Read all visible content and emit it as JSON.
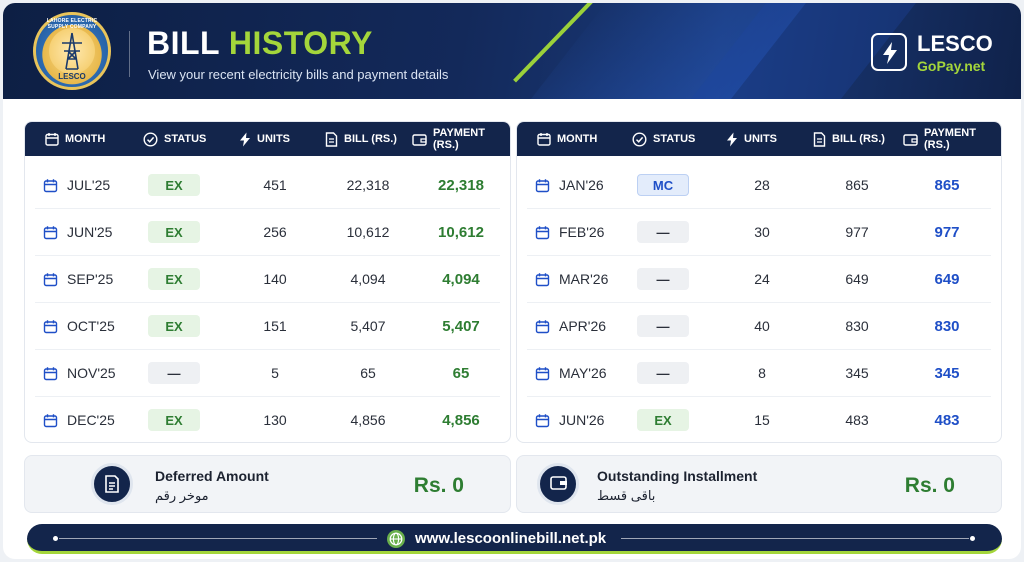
{
  "header": {
    "logo_top_text": "LAHORE ELECTRIC SUPPLY COMPANY",
    "logo_text": "LESCO",
    "title_part1": "BILL",
    "title_part2": "HISTORY",
    "subtitle": "View your recent electricity bills and payment details",
    "brand_name": "LESCO",
    "brand_sub": "GoPay.net"
  },
  "columns": {
    "month": "MONTH",
    "status": "STATUS",
    "units": "UNITS",
    "bill": "BILL (RS.)",
    "payment": "PAYMENT (RS.)"
  },
  "left_table": [
    {
      "month": "JUL'25",
      "status": "EX",
      "units": "451",
      "bill": "22,318",
      "payment": "22,318"
    },
    {
      "month": "JUN'25",
      "status": "EX",
      "units": "256",
      "bill": "10,612",
      "payment": "10,612"
    },
    {
      "month": "SEP'25",
      "status": "EX",
      "units": "140",
      "bill": "4,094",
      "payment": "4,094"
    },
    {
      "month": "OCT'25",
      "status": "EX",
      "units": "151",
      "bill": "5,407",
      "payment": "5,407"
    },
    {
      "month": "NOV'25",
      "status": "—",
      "units": "5",
      "bill": "65",
      "payment": "65"
    },
    {
      "month": "DEC'25",
      "status": "EX",
      "units": "130",
      "bill": "4,856",
      "payment": "4,856"
    }
  ],
  "right_table": [
    {
      "month": "JAN'26",
      "status": "MC",
      "units": "28",
      "bill": "865",
      "payment": "865"
    },
    {
      "month": "FEB'26",
      "status": "—",
      "units": "30",
      "bill": "977",
      "payment": "977"
    },
    {
      "month": "MAR'26",
      "status": "—",
      "units": "24",
      "bill": "649",
      "payment": "649"
    },
    {
      "month": "APR'26",
      "status": "—",
      "units": "40",
      "bill": "830",
      "payment": "830"
    },
    {
      "month": "MAY'26",
      "status": "—",
      "units": "8",
      "bill": "345",
      "payment": "345"
    },
    {
      "month": "JUN'26",
      "status": "EX",
      "units": "15",
      "bill": "483",
      "payment": "483"
    }
  ],
  "summary": {
    "deferred_title": "Deferred Amount",
    "deferred_urdu": "موخر رقم",
    "deferred_value": "Rs. 0",
    "installment_title": "Outstanding Installment",
    "installment_urdu": "باقی قسط",
    "installment_value": "Rs. 0"
  },
  "footer": {
    "url": "www.lescoonlinebill.net.pk"
  },
  "colors": {
    "navy": "#13254b",
    "accent_green": "#a4d63b",
    "payment_green": "#2e7d32",
    "payment_blue": "#1f4fc7"
  }
}
